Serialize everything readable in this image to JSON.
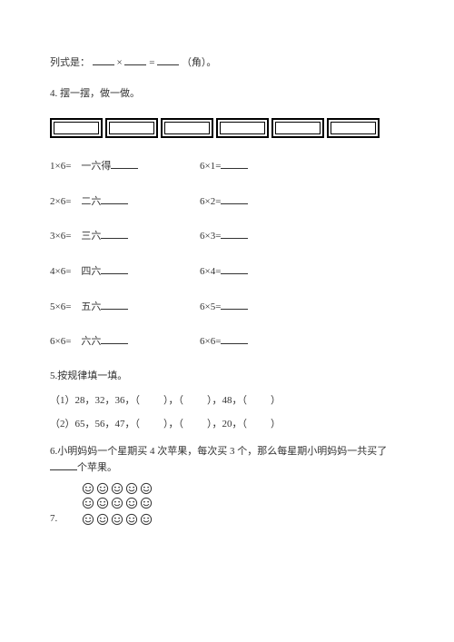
{
  "q3": {
    "prefix": "列式是：",
    "mid1": "×",
    "mid2": "=",
    "suffix": "（角）。"
  },
  "q4": {
    "title": "4. 摆一摆，做一做。",
    "rows": [
      {
        "left_expr": "1×6=",
        "cn": "一六得",
        "right_expr": "6×1="
      },
      {
        "left_expr": "2×6=",
        "cn": "二六",
        "right_expr": "6×2="
      },
      {
        "left_expr": "3×6=",
        "cn": "三六",
        "right_expr": "6×3="
      },
      {
        "left_expr": "4×6=",
        "cn": "四六",
        "right_expr": "6×4="
      },
      {
        "left_expr": "5×6=",
        "cn": "五六",
        "right_expr": "6×5="
      },
      {
        "left_expr": "6×6=",
        "cn": "六六",
        "right_expr": "6×6="
      }
    ]
  },
  "q5": {
    "title": "5.按规律填一填。",
    "line1_a": "（1）28，32，36，（",
    "line1_b": "），（",
    "line1_c": "），48，（",
    "line1_d": "）",
    "line2_a": "（2）65，56，47，（",
    "line2_b": "），（",
    "line2_c": "），20，（",
    "line2_d": "）"
  },
  "q6": {
    "text_a": "6.小明妈妈一个星期买 4 次苹果，每次买 3 个，那么每星期小明妈妈一共买了",
    "text_b": "个苹果。"
  },
  "q7": {
    "label": "7."
  },
  "smiley": {
    "stroke": "#333333",
    "fill": "#ffffff"
  }
}
